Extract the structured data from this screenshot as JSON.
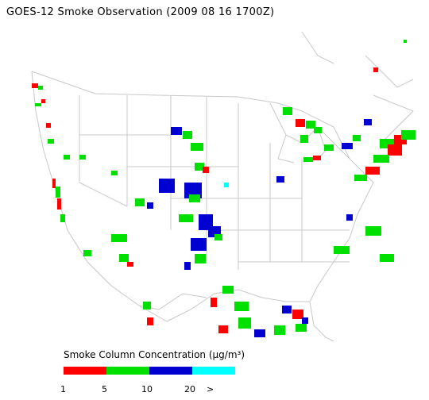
{
  "title": "GOES-12 Smoke Observation (2009 08 16  1700Z)",
  "legend": {
    "title": "Smoke Column Concentration (µg/m³)",
    "ticks": [
      "1",
      "5",
      "10",
      "20",
      ">"
    ],
    "colors": [
      "#ff0000",
      "#00e000",
      "#0000d0",
      "#00ffff"
    ]
  },
  "map": {
    "region": "continental-united-states",
    "line_color": "#c8c8c8"
  },
  "smoke_intensity": [
    "#ff0000",
    "#00e000",
    "#0000d0"
  ]
}
